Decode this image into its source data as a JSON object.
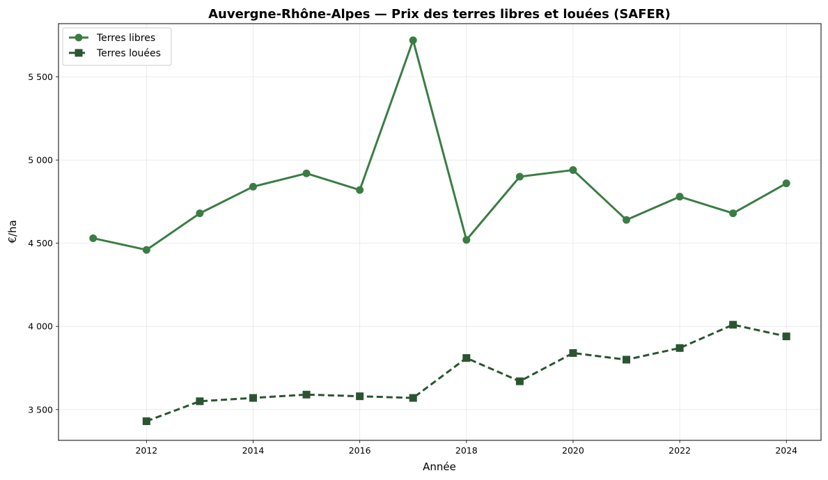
{
  "chart_data": {
    "type": "line",
    "title": "Auvergne-Rhône-Alpes — Prix des terres libres et louées (SAFER)",
    "xlabel": "Année",
    "ylabel": "€/ha",
    "xlim": [
      2010.35,
      2024.65
    ],
    "ylim": [
      3315,
      5820
    ],
    "x_ticks": [
      2012,
      2014,
      2016,
      2018,
      2020,
      2022,
      2024
    ],
    "x_tick_labels": [
      "2012",
      "2014",
      "2016",
      "2018",
      "2020",
      "2022",
      "2024"
    ],
    "y_ticks": [
      3500,
      4000,
      4500,
      5000,
      5500
    ],
    "y_tick_labels": [
      "3 500",
      "4 000",
      "4 500",
      "5 000",
      "5 500"
    ],
    "grid": true,
    "legend_position": "top-left",
    "series": [
      {
        "name": "Terres libres",
        "color": "#3a7d44",
        "marker": "circle",
        "linestyle": "solid",
        "x": [
          2011,
          2012,
          2013,
          2014,
          2015,
          2016,
          2017,
          2018,
          2019,
          2020,
          2021,
          2022,
          2023,
          2024
        ],
        "values": [
          4530,
          4460,
          4680,
          4840,
          4920,
          4820,
          5720,
          4520,
          4900,
          4940,
          4640,
          4780,
          4680,
          4860
        ]
      },
      {
        "name": "Terres louées",
        "color": "#2a5530",
        "marker": "square",
        "linestyle": "dashed",
        "x": [
          2012,
          2013,
          2014,
          2015,
          2016,
          2017,
          2018,
          2019,
          2020,
          2021,
          2022,
          2023,
          2024
        ],
        "values": [
          3430,
          3550,
          3570,
          3590,
          3580,
          3570,
          3810,
          3670,
          3840,
          3800,
          3870,
          4010,
          3940
        ]
      }
    ]
  }
}
